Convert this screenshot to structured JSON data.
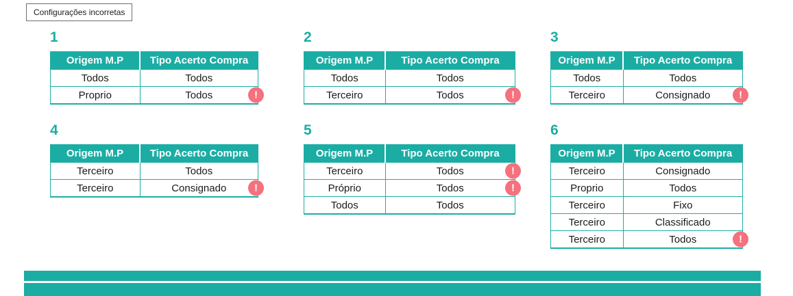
{
  "page": {
    "label": "Configurações incorretas"
  },
  "columns": [
    "Origem M.P",
    "Tipo Acerto Compra"
  ],
  "alert_icon": "!",
  "colors": {
    "teal": "#1bada4",
    "alert_pink": "#f4717d",
    "header_text": "#ffffff",
    "cell_text": "#1a1a1a"
  },
  "tables": [
    {
      "number": "1",
      "rows": [
        {
          "origem": "Todos",
          "tipo": "Todos",
          "alert": false
        },
        {
          "origem": "Proprio",
          "tipo": "Todos",
          "alert": true
        }
      ]
    },
    {
      "number": "2",
      "rows": [
        {
          "origem": "Todos",
          "tipo": "Todos",
          "alert": false
        },
        {
          "origem": "Terceiro",
          "tipo": "Todos",
          "alert": true
        }
      ]
    },
    {
      "number": "3",
      "rows": [
        {
          "origem": "Todos",
          "tipo": "Todos",
          "alert": false
        },
        {
          "origem": "Terceiro",
          "tipo": "Consignado",
          "alert": true
        }
      ]
    },
    {
      "number": "4",
      "rows": [
        {
          "origem": "Terceiro",
          "tipo": "Todos",
          "alert": false
        },
        {
          "origem": "Terceiro",
          "tipo": "Consignado",
          "alert": true
        }
      ]
    },
    {
      "number": "5",
      "rows": [
        {
          "origem": "Terceiro",
          "tipo": "Todos",
          "alert": true
        },
        {
          "origem": "Próprio",
          "tipo": "Todos",
          "alert": true
        },
        {
          "origem": "Todos",
          "tipo": "Todos",
          "alert": false
        }
      ]
    },
    {
      "number": "6",
      "rows": [
        {
          "origem": "Terceiro",
          "tipo": "Consignado",
          "alert": false
        },
        {
          "origem": "Proprio",
          "tipo": "Todos",
          "alert": false
        },
        {
          "origem": "Terceiro",
          "tipo": "Fixo",
          "alert": false
        },
        {
          "origem": "Terceiro",
          "tipo": "Classificado",
          "alert": false
        },
        {
          "origem": "Terceiro",
          "tipo": "Todos",
          "alert": true
        }
      ]
    }
  ]
}
